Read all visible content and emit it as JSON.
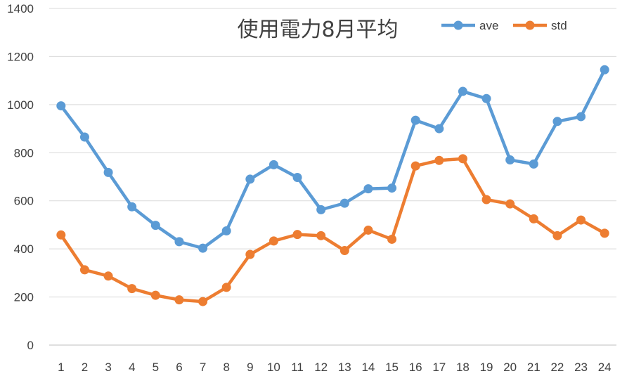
{
  "chart_data": {
    "type": "line",
    "title": "使用電力8月平均",
    "xlabel": "",
    "ylabel": "",
    "ylim": [
      0,
      1400
    ],
    "yticks": [
      0,
      200,
      400,
      600,
      800,
      1000,
      1200,
      1400
    ],
    "grid": true,
    "legend": "top-right",
    "categories": [
      "1",
      "2",
      "3",
      "4",
      "5",
      "6",
      "7",
      "8",
      "9",
      "10",
      "11",
      "12",
      "13",
      "14",
      "15",
      "16",
      "17",
      "18",
      "19",
      "20",
      "21",
      "22",
      "23",
      "24"
    ],
    "series": [
      {
        "name": "ave",
        "color": "#5b9bd5",
        "values": [
          995,
          865,
          718,
          575,
          498,
          430,
          403,
          475,
          690,
          750,
          697,
          563,
          590,
          650,
          653,
          935,
          900,
          1055,
          1025,
          770,
          753,
          930,
          950,
          1145
        ]
      },
      {
        "name": "std",
        "color": "#ed7d31",
        "values": [
          458,
          313,
          287,
          235,
          207,
          188,
          181,
          240,
          377,
          433,
          460,
          455,
          393,
          478,
          440,
          745,
          768,
          775,
          605,
          587,
          525,
          455,
          520,
          465
        ]
      }
    ]
  }
}
